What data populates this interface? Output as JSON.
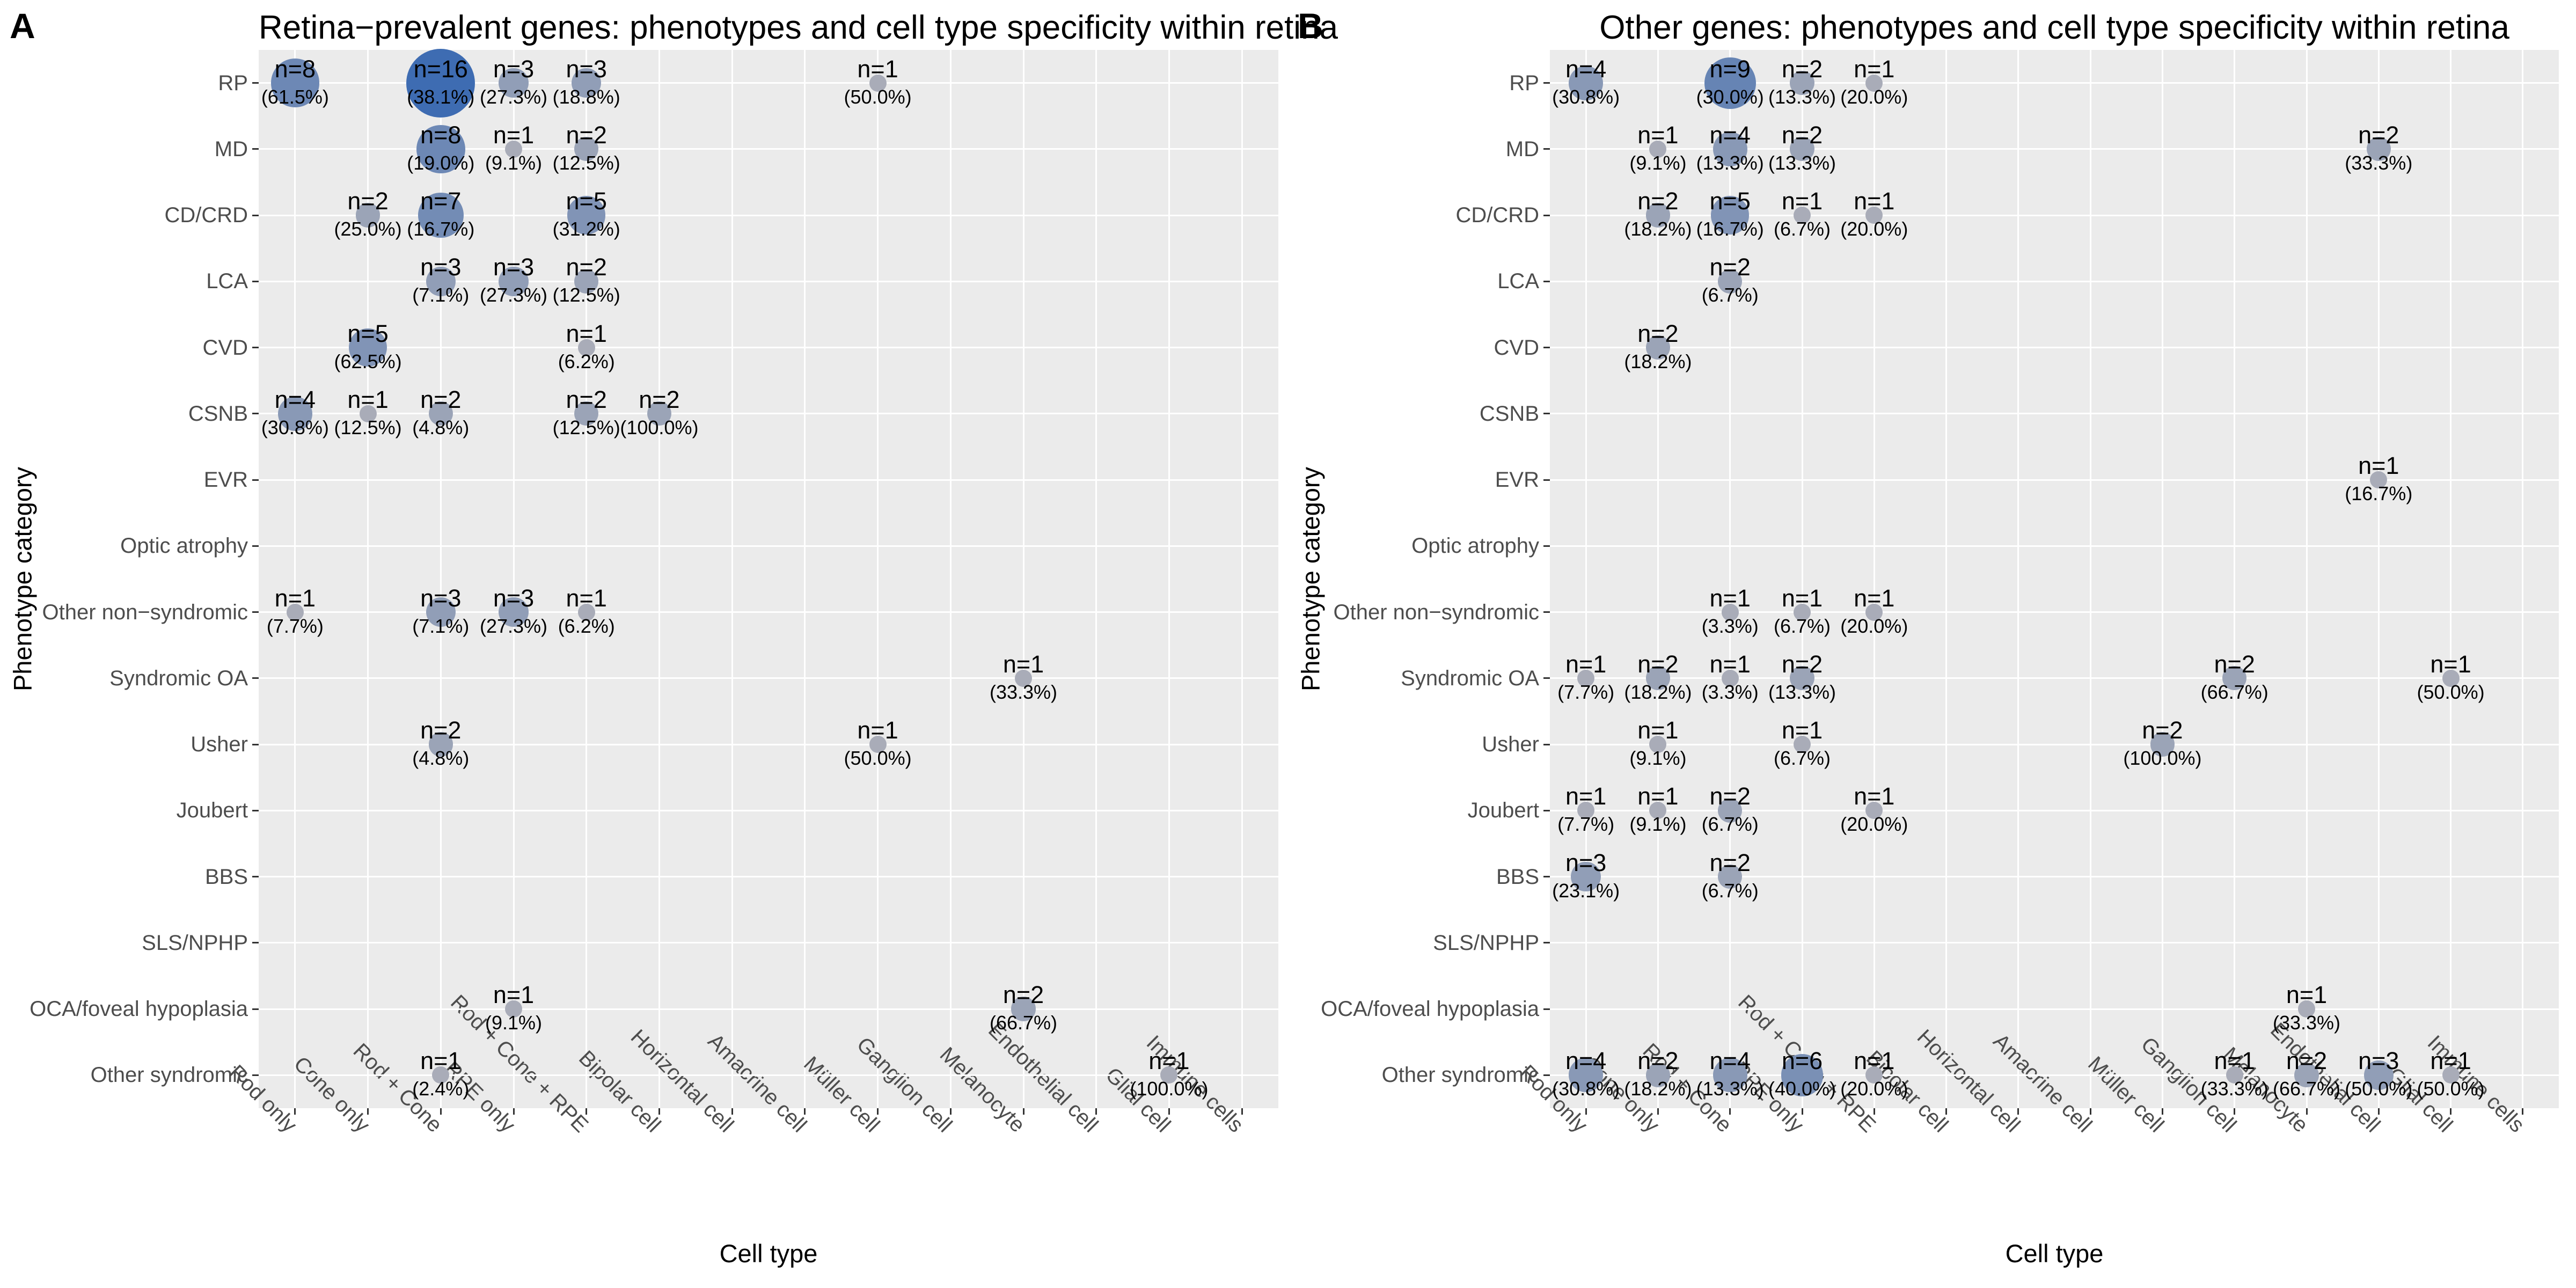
{
  "style": {
    "panel_bg": "#ebebeb",
    "gridline": "#ffffff",
    "tick_color": "#333333",
    "axis_text_color": "#4d4d4d",
    "label_color": "#000000",
    "bubble_gray": "#a9acb8",
    "bubble_blue": "#3e6cb2"
  },
  "chart_data": [
    {
      "type": "bubble",
      "panel_label": "A",
      "title": "Retina−prevalent genes: phenotypes and cell type specificity within retina",
      "xlabel": "Cell type",
      "ylabel": "Phenotype category",
      "legend": "none",
      "x_categories": [
        "Rod only",
        "Cone only",
        "Rod + Cone",
        "RPE only",
        "Rod + Cone + RPE",
        "Bipolar cell",
        "Horizontal cell",
        "Amacrine cell",
        "Müller cell",
        "Ganglion cell",
        "Melanocyte",
        "Endothelial cell",
        "Glial cell",
        "Immune cells"
      ],
      "y_categories": [
        "RP",
        "MD",
        "CD/CRD",
        "LCA",
        "CVD",
        "CSNB",
        "EVR",
        "Optic atrophy",
        "Other non−syndromic",
        "Syndromic OA",
        "Usher",
        "Joubert",
        "BBS",
        "SLS/NPHP",
        "OCA/foveal hypoplasia",
        "Other syndromic"
      ],
      "points": [
        {
          "x": "Rod only",
          "y": "RP",
          "n": 8,
          "pct": "61.5%"
        },
        {
          "x": "Rod + Cone",
          "y": "RP",
          "n": 16,
          "pct": "38.1%"
        },
        {
          "x": "RPE only",
          "y": "RP",
          "n": 3,
          "pct": "27.3%"
        },
        {
          "x": "Rod + Cone + RPE",
          "y": "RP",
          "n": 3,
          "pct": "18.8%"
        },
        {
          "x": "Müller cell",
          "y": "RP",
          "n": 1,
          "pct": "50.0%"
        },
        {
          "x": "Rod + Cone",
          "y": "MD",
          "n": 8,
          "pct": "19.0%"
        },
        {
          "x": "RPE only",
          "y": "MD",
          "n": 1,
          "pct": "9.1%"
        },
        {
          "x": "Rod + Cone + RPE",
          "y": "MD",
          "n": 2,
          "pct": "12.5%"
        },
        {
          "x": "Cone only",
          "y": "CD/CRD",
          "n": 2,
          "pct": "25.0%"
        },
        {
          "x": "Rod + Cone",
          "y": "CD/CRD",
          "n": 7,
          "pct": "16.7%"
        },
        {
          "x": "Rod + Cone + RPE",
          "y": "CD/CRD",
          "n": 5,
          "pct": "31.2%"
        },
        {
          "x": "Rod + Cone",
          "y": "LCA",
          "n": 3,
          "pct": "7.1%"
        },
        {
          "x": "RPE only",
          "y": "LCA",
          "n": 3,
          "pct": "27.3%"
        },
        {
          "x": "Rod + Cone + RPE",
          "y": "LCA",
          "n": 2,
          "pct": "12.5%"
        },
        {
          "x": "Cone only",
          "y": "CVD",
          "n": 5,
          "pct": "62.5%"
        },
        {
          "x": "Rod + Cone + RPE",
          "y": "CVD",
          "n": 1,
          "pct": "6.2%"
        },
        {
          "x": "Rod only",
          "y": "CSNB",
          "n": 4,
          "pct": "30.8%"
        },
        {
          "x": "Cone only",
          "y": "CSNB",
          "n": 1,
          "pct": "12.5%"
        },
        {
          "x": "Rod + Cone",
          "y": "CSNB",
          "n": 2,
          "pct": "4.8%"
        },
        {
          "x": "Rod + Cone + RPE",
          "y": "CSNB",
          "n": 2,
          "pct": "12.5%"
        },
        {
          "x": "Bipolar cell",
          "y": "CSNB",
          "n": 2,
          "pct": "100.0%"
        },
        {
          "x": "Rod only",
          "y": "Other non−syndromic",
          "n": 1,
          "pct": "7.7%"
        },
        {
          "x": "Rod + Cone",
          "y": "Other non−syndromic",
          "n": 3,
          "pct": "7.1%"
        },
        {
          "x": "RPE only",
          "y": "Other non−syndromic",
          "n": 3,
          "pct": "27.3%"
        },
        {
          "x": "Rod + Cone + RPE",
          "y": "Other non−syndromic",
          "n": 1,
          "pct": "6.2%"
        },
        {
          "x": "Melanocyte",
          "y": "Syndromic OA",
          "n": 1,
          "pct": "33.3%"
        },
        {
          "x": "Rod + Cone",
          "y": "Usher",
          "n": 2,
          "pct": "4.8%"
        },
        {
          "x": "Müller cell",
          "y": "Usher",
          "n": 1,
          "pct": "50.0%"
        },
        {
          "x": "RPE only",
          "y": "OCA/foveal hypoplasia",
          "n": 1,
          "pct": "9.1%"
        },
        {
          "x": "Melanocyte",
          "y": "OCA/foveal hypoplasia",
          "n": 2,
          "pct": "66.7%"
        },
        {
          "x": "Rod + Cone",
          "y": "Other syndromic",
          "n": 1,
          "pct": "2.4%"
        },
        {
          "x": "Glial cell",
          "y": "Other syndromic",
          "n": 1,
          "pct": "100.0%"
        }
      ]
    },
    {
      "type": "bubble",
      "panel_label": "B",
      "title": "Other genes: phenotypes and cell type specificity within retina",
      "xlabel": "Cell type",
      "ylabel": "Phenotype category",
      "legend": "none",
      "x_categories": [
        "Rod only",
        "Cone only",
        "Rod + Cone",
        "RPE only",
        "Rod + Cone + RPE",
        "Bipolar cell",
        "Horizontal cell",
        "Amacrine cell",
        "Müller cell",
        "Ganglion cell",
        "Melanocyte",
        "Endothelial cell",
        "Glial cell",
        "Immune cells"
      ],
      "y_categories": [
        "RP",
        "MD",
        "CD/CRD",
        "LCA",
        "CVD",
        "CSNB",
        "EVR",
        "Optic atrophy",
        "Other non−syndromic",
        "Syndromic OA",
        "Usher",
        "Joubert",
        "BBS",
        "SLS/NPHP",
        "OCA/foveal hypoplasia",
        "Other syndromic"
      ],
      "points": [
        {
          "x": "Rod only",
          "y": "RP",
          "n": 4,
          "pct": "30.8%"
        },
        {
          "x": "Rod + Cone",
          "y": "RP",
          "n": 9,
          "pct": "30.0%"
        },
        {
          "x": "RPE only",
          "y": "RP",
          "n": 2,
          "pct": "13.3%"
        },
        {
          "x": "Rod + Cone + RPE",
          "y": "RP",
          "n": 1,
          "pct": "20.0%"
        },
        {
          "x": "Cone only",
          "y": "MD",
          "n": 1,
          "pct": "9.1%"
        },
        {
          "x": "Rod + Cone",
          "y": "MD",
          "n": 4,
          "pct": "13.3%"
        },
        {
          "x": "RPE only",
          "y": "MD",
          "n": 2,
          "pct": "13.3%"
        },
        {
          "x": "Endothelial cell",
          "y": "MD",
          "n": 2,
          "pct": "33.3%"
        },
        {
          "x": "Cone only",
          "y": "CD/CRD",
          "n": 2,
          "pct": "18.2%"
        },
        {
          "x": "Rod + Cone",
          "y": "CD/CRD",
          "n": 5,
          "pct": "16.7%"
        },
        {
          "x": "RPE only",
          "y": "CD/CRD",
          "n": 1,
          "pct": "6.7%"
        },
        {
          "x": "Rod + Cone + RPE",
          "y": "CD/CRD",
          "n": 1,
          "pct": "20.0%"
        },
        {
          "x": "Rod + Cone",
          "y": "LCA",
          "n": 2,
          "pct": "6.7%"
        },
        {
          "x": "Cone only",
          "y": "CVD",
          "n": 2,
          "pct": "18.2%"
        },
        {
          "x": "Endothelial cell",
          "y": "EVR",
          "n": 1,
          "pct": "16.7%"
        },
        {
          "x": "Rod + Cone",
          "y": "Other non−syndromic",
          "n": 1,
          "pct": "3.3%"
        },
        {
          "x": "RPE only",
          "y": "Other non−syndromic",
          "n": 1,
          "pct": "6.7%"
        },
        {
          "x": "Rod + Cone + RPE",
          "y": "Other non−syndromic",
          "n": 1,
          "pct": "20.0%"
        },
        {
          "x": "Rod only",
          "y": "Syndromic OA",
          "n": 1,
          "pct": "7.7%"
        },
        {
          "x": "Cone only",
          "y": "Syndromic OA",
          "n": 2,
          "pct": "18.2%"
        },
        {
          "x": "Rod + Cone",
          "y": "Syndromic OA",
          "n": 1,
          "pct": "3.3%"
        },
        {
          "x": "RPE only",
          "y": "Syndromic OA",
          "n": 2,
          "pct": "13.3%"
        },
        {
          "x": "Ganglion cell",
          "y": "Syndromic OA",
          "n": 2,
          "pct": "66.7%"
        },
        {
          "x": "Glial cell",
          "y": "Syndromic OA",
          "n": 1,
          "pct": "50.0%"
        },
        {
          "x": "Cone only",
          "y": "Usher",
          "n": 1,
          "pct": "9.1%"
        },
        {
          "x": "RPE only",
          "y": "Usher",
          "n": 1,
          "pct": "6.7%"
        },
        {
          "x": "Müller cell",
          "y": "Usher",
          "n": 2,
          "pct": "100.0%"
        },
        {
          "x": "Rod only",
          "y": "Joubert",
          "n": 1,
          "pct": "7.7%"
        },
        {
          "x": "Cone only",
          "y": "Joubert",
          "n": 1,
          "pct": "9.1%"
        },
        {
          "x": "Rod + Cone",
          "y": "Joubert",
          "n": 2,
          "pct": "6.7%"
        },
        {
          "x": "Rod + Cone + RPE",
          "y": "Joubert",
          "n": 1,
          "pct": "20.0%"
        },
        {
          "x": "Rod only",
          "y": "BBS",
          "n": 3,
          "pct": "23.1%"
        },
        {
          "x": "Rod + Cone",
          "y": "BBS",
          "n": 2,
          "pct": "6.7%"
        },
        {
          "x": "Melanocyte",
          "y": "OCA/foveal hypoplasia",
          "n": 1,
          "pct": "33.3%"
        },
        {
          "x": "Rod only",
          "y": "Other syndromic",
          "n": 4,
          "pct": "30.8%"
        },
        {
          "x": "Cone only",
          "y": "Other syndromic",
          "n": 2,
          "pct": "18.2%"
        },
        {
          "x": "Rod + Cone",
          "y": "Other syndromic",
          "n": 4,
          "pct": "13.3%"
        },
        {
          "x": "RPE only",
          "y": "Other syndromic",
          "n": 6,
          "pct": "40.0%"
        },
        {
          "x": "Rod + Cone + RPE",
          "y": "Other syndromic",
          "n": 1,
          "pct": "20.0%"
        },
        {
          "x": "Ganglion cell",
          "y": "Other syndromic",
          "n": 1,
          "pct": "33.3%"
        },
        {
          "x": "Melanocyte",
          "y": "Other syndromic",
          "n": 2,
          "pct": "66.7%"
        },
        {
          "x": "Endothelial cell",
          "y": "Other syndromic",
          "n": 3,
          "pct": "50.0%"
        },
        {
          "x": "Glial cell",
          "y": "Other syndromic",
          "n": 1,
          "pct": "50.0%"
        }
      ]
    }
  ]
}
